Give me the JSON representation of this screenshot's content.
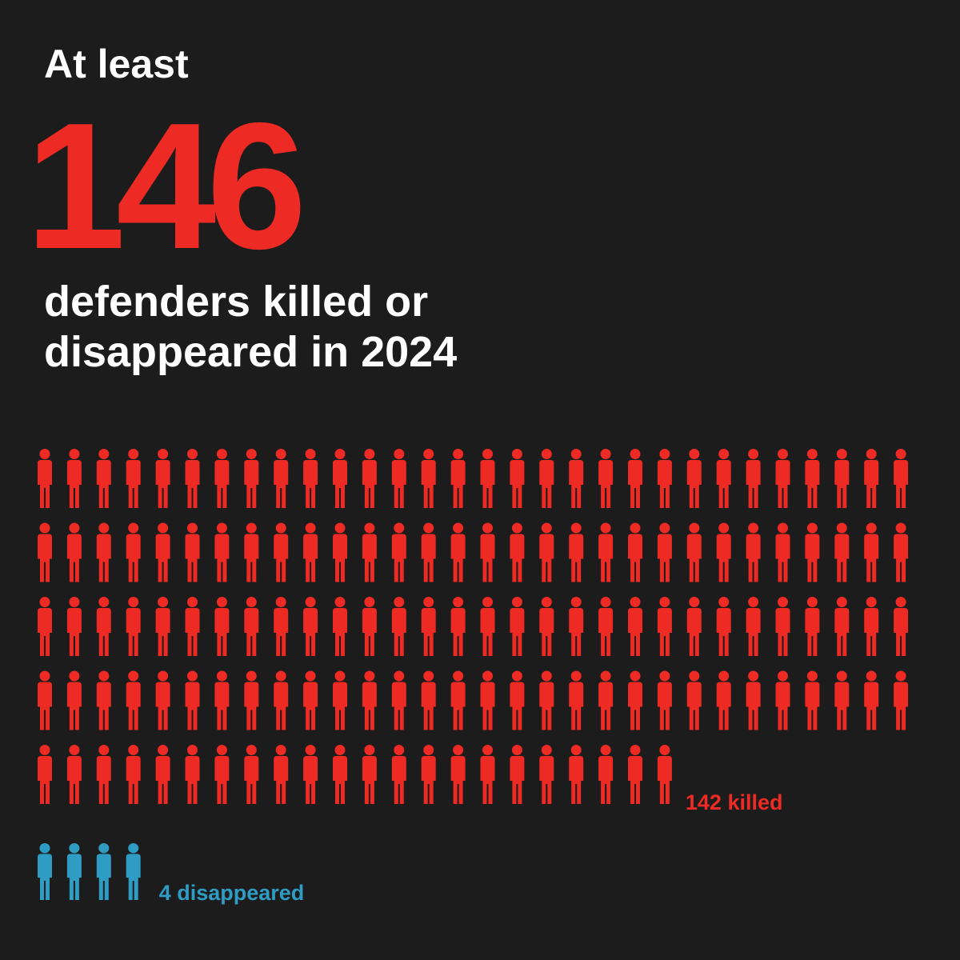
{
  "chart_data": {
    "type": "pictogram",
    "lead": "At least",
    "total": 146,
    "subtitle": [
      "defenders killed or",
      "disappeared in 2024"
    ],
    "values": [
      142,
      4
    ],
    "value_labels": [
      "142 killed",
      "4 disappeared"
    ],
    "colors": [
      "#ee2a24",
      "#2f9cc4"
    ],
    "per_row": 30
  }
}
